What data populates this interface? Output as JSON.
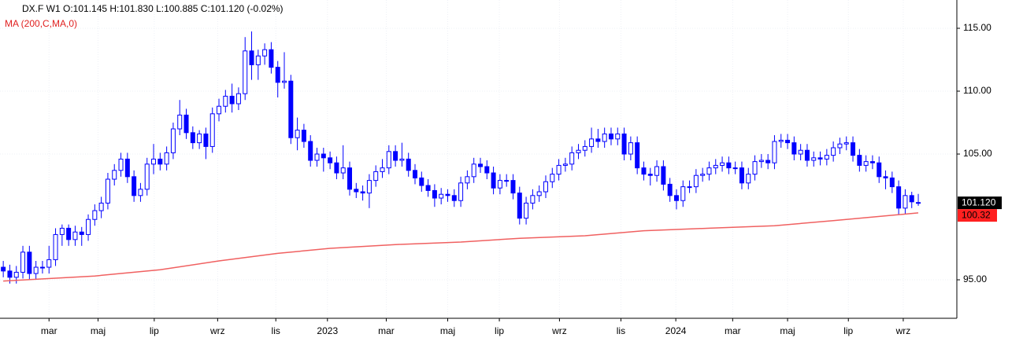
{
  "chart_data": {
    "type": "candlestick",
    "title": "DX.F  W1  O:101.145 H:101.830 L:100.885 C:101.120  (-0.02%)",
    "legend": "MA (200,C,MA,0)",
    "color": "#0000ff",
    "grid": true,
    "xlim": [
      -0.5,
      145.9
    ],
    "ylim": [
      91.94,
      117.25
    ],
    "yticks": [
      {
        "value": 95,
        "label": "95.00"
      },
      {
        "value": 105,
        "label": "105.00"
      },
      {
        "value": 110,
        "label": "110.00"
      },
      {
        "value": 115,
        "label": "115.00"
      }
    ],
    "xticks": [
      {
        "value": 7.0,
        "label": "mar"
      },
      {
        "value": 14.5,
        "label": "maj"
      },
      {
        "value": 23.1,
        "label": "lip"
      },
      {
        "value": 32.8,
        "label": "wrz"
      },
      {
        "value": 41.7,
        "label": "lis"
      },
      {
        "value": 49.6,
        "label": "2023"
      },
      {
        "value": 58.6,
        "label": "mar"
      },
      {
        "value": 68.0,
        "label": "maj"
      },
      {
        "value": 75.9,
        "label": "lip"
      },
      {
        "value": 85.1,
        "label": "wrz"
      },
      {
        "value": 94.5,
        "label": "lis"
      },
      {
        "value": 102.9,
        "label": "2024"
      },
      {
        "value": 111.6,
        "label": "mar"
      },
      {
        "value": 120.0,
        "label": "maj"
      },
      {
        "value": 129.3,
        "label": "lip"
      },
      {
        "value": 137.7,
        "label": "wrz"
      }
    ],
    "open": [
      96.0,
      95.7,
      95.2,
      95.6,
      97.2,
      95.5,
      96.0,
      96.0,
      96.6,
      98.6,
      99.1,
      98.2,
      98.8,
      98.6,
      99.8,
      100.5,
      101.1,
      103.0,
      103.7,
      104.6,
      103.2,
      101.7,
      102.2,
      104.2,
      104.6,
      104.2,
      105.1,
      107.0,
      108.1,
      106.7,
      105.9,
      106.6,
      105.6,
      108.2,
      108.8,
      109.6,
      109.0,
      109.8,
      113.2,
      112.1,
      112.8,
      113.3,
      111.9,
      110.7,
      110.8,
      106.3,
      106.9,
      106.0,
      104.5,
      105.0,
      104.7,
      104.3,
      103.5,
      103.9,
      102.2,
      102.0,
      101.9,
      102.9,
      103.6,
      103.9,
      105.2,
      104.5,
      104.6,
      103.7,
      103.1,
      102.5,
      102.1,
      101.5,
      101.8,
      101.7,
      101.3,
      102.7,
      103.2,
      104.2,
      104.0,
      103.5,
      102.3,
      102.9,
      102.9,
      101.9,
      99.9,
      101.1,
      101.7,
      102.0,
      102.8,
      103.4,
      104.1,
      104.2,
      105.1,
      105.3,
      105.6,
      106.2,
      106.0,
      106.6,
      106.2,
      106.6,
      105.0,
      105.9,
      103.9,
      103.4,
      103.3,
      104.0,
      102.6,
      101.7,
      101.3,
      102.4,
      102.4,
      103.3,
      103.4,
      103.9,
      104.1,
      104.3,
      103.9,
      103.9,
      102.7,
      103.4,
      104.4,
      104.5,
      104.3,
      106.0,
      106.1,
      105.9,
      105.0,
      105.3,
      104.5,
      104.7,
      104.6,
      104.9,
      105.5,
      105.8,
      105.9,
      104.9,
      104.1,
      104.4,
      104.3,
      103.2,
      103.1,
      102.4,
      100.7,
      101.7,
      101.145
    ],
    "high": [
      96.5,
      96.2,
      96.1,
      97.7,
      97.7,
      96.5,
      96.5,
      97.7,
      99.1,
      99.4,
      99.4,
      99.3,
      99.2,
      100.2,
      101.0,
      101.6,
      103.5,
      104.2,
      105.1,
      105.1,
      103.7,
      102.7,
      104.7,
      105.8,
      105.1,
      105.6,
      107.5,
      109.3,
      108.6,
      107.2,
      106.9,
      107.1,
      108.7,
      109.4,
      110.1,
      110.6,
      110.3,
      114.3,
      114.75,
      113.3,
      113.8,
      113.9,
      112.4,
      113.1,
      111.3,
      107.9,
      107.4,
      106.5,
      105.5,
      105.5,
      105.2,
      104.8,
      105.7,
      104.4,
      102.7,
      102.5,
      103.4,
      104.1,
      104.6,
      105.7,
      105.7,
      105.9,
      105.1,
      104.2,
      103.6,
      103.0,
      102.6,
      102.3,
      102.2,
      102.2,
      103.2,
      103.7,
      104.7,
      104.7,
      104.5,
      104.0,
      103.4,
      103.4,
      103.4,
      102.4,
      101.6,
      102.2,
      102.5,
      103.3,
      103.9,
      104.6,
      104.7,
      105.6,
      105.8,
      106.1,
      107.1,
      107.0,
      107.1,
      107.1,
      107.1,
      107.1,
      106.4,
      106.4,
      104.4,
      103.9,
      104.5,
      104.5,
      103.1,
      102.2,
      102.9,
      102.9,
      103.8,
      103.9,
      104.4,
      104.6,
      104.8,
      104.8,
      104.4,
      104.4,
      103.9,
      104.9,
      105.0,
      105.0,
      106.5,
      106.6,
      106.6,
      106.4,
      105.8,
      105.8,
      105.2,
      105.2,
      105.4,
      106.0,
      106.3,
      106.4,
      106.4,
      105.4,
      104.9,
      104.9,
      104.8,
      103.7,
      103.6,
      102.9,
      102.2,
      102.0,
      101.83
    ],
    "low": [
      95.2,
      94.7,
      94.7,
      95.1,
      95.0,
      95.0,
      95.5,
      95.5,
      96.1,
      97.7,
      97.7,
      97.7,
      97.7,
      98.1,
      99.3,
      99.9,
      100.6,
      102.5,
      103.2,
      102.7,
      101.2,
      101.2,
      101.7,
      103.4,
      103.7,
      103.7,
      104.6,
      106.5,
      106.2,
      105.4,
      105.4,
      104.6,
      105.1,
      107.6,
      108.3,
      108.3,
      108.5,
      109.3,
      110.9,
      110.9,
      112.1,
      111.4,
      109.5,
      110.2,
      105.8,
      105.3,
      105.5,
      104.0,
      104.0,
      103.6,
      103.8,
      103.0,
      103.0,
      101.7,
      101.5,
      101.3,
      100.7,
      102.4,
      103.1,
      103.4,
      104.0,
      104.0,
      103.2,
      102.6,
      102.0,
      101.6,
      100.8,
      101.0,
      101.2,
      100.8,
      100.8,
      102.2,
      102.7,
      103.5,
      103.0,
      101.8,
      101.8,
      102.4,
      101.4,
      99.4,
      99.4,
      100.6,
      101.2,
      101.5,
      102.3,
      102.9,
      103.6,
      103.7,
      104.6,
      104.8,
      105.1,
      105.5,
      105.5,
      105.7,
      105.7,
      104.5,
      104.5,
      103.4,
      102.9,
      102.5,
      102.8,
      102.1,
      101.2,
      100.6,
      100.8,
      101.9,
      101.9,
      102.8,
      102.9,
      103.4,
      103.6,
      103.4,
      103.4,
      102.2,
      102.2,
      102.9,
      103.9,
      103.8,
      103.8,
      105.5,
      105.4,
      104.5,
      104.5,
      104.0,
      104.0,
      104.1,
      104.1,
      104.4,
      105.0,
      105.3,
      104.4,
      103.6,
      103.6,
      103.8,
      102.7,
      102.2,
      101.9,
      100.2,
      100.2,
      100.7,
      100.885
    ],
    "close": [
      95.7,
      95.2,
      95.6,
      97.2,
      95.5,
      96.0,
      96.0,
      96.6,
      98.6,
      99.1,
      98.2,
      98.8,
      98.6,
      99.8,
      100.5,
      101.1,
      103.0,
      103.7,
      104.6,
      103.2,
      101.7,
      102.2,
      104.2,
      104.6,
      104.2,
      105.1,
      107.0,
      108.1,
      106.7,
      105.9,
      106.6,
      105.6,
      108.2,
      108.8,
      109.6,
      109.0,
      109.8,
      113.2,
      112.1,
      112.8,
      113.3,
      111.9,
      110.7,
      110.8,
      106.3,
      106.9,
      106.0,
      104.5,
      105.0,
      104.7,
      104.3,
      103.5,
      103.9,
      102.2,
      102.0,
      101.9,
      102.9,
      103.6,
      103.9,
      105.2,
      104.5,
      104.6,
      103.7,
      103.1,
      102.5,
      102.1,
      101.5,
      101.8,
      101.7,
      101.3,
      102.7,
      103.2,
      104.2,
      104.0,
      103.5,
      102.3,
      102.9,
      102.9,
      101.9,
      99.9,
      101.1,
      101.7,
      102.0,
      102.8,
      103.4,
      104.1,
      104.2,
      105.1,
      105.3,
      105.6,
      106.2,
      106.0,
      106.6,
      106.2,
      106.6,
      105.0,
      105.9,
      103.9,
      103.4,
      103.3,
      104.0,
      102.6,
      101.7,
      101.3,
      102.4,
      102.4,
      103.3,
      103.4,
      103.9,
      104.1,
      104.3,
      103.9,
      103.9,
      102.7,
      103.4,
      104.4,
      104.5,
      104.3,
      106.0,
      106.1,
      105.9,
      105.0,
      105.3,
      104.5,
      104.7,
      104.6,
      104.9,
      105.5,
      105.8,
      105.9,
      104.9,
      104.1,
      104.4,
      104.3,
      103.2,
      103.1,
      102.4,
      100.7,
      101.7,
      101.2,
      101.12
    ],
    "last_price": {
      "value": 101.12,
      "label": "101.120"
    },
    "ma": {
      "color": "#f06060",
      "x": [
        0,
        14,
        24,
        33,
        42,
        50,
        60,
        70,
        79,
        89,
        98,
        108,
        118,
        127,
        140
      ],
      "values": [
        94.9,
        95.3,
        95.8,
        96.5,
        97.1,
        97.5,
        97.8,
        98.0,
        98.3,
        98.5,
        98.9,
        99.1,
        99.3,
        99.7,
        100.32
      ],
      "last_label": {
        "value": 100.32,
        "label": "100.32"
      }
    }
  }
}
